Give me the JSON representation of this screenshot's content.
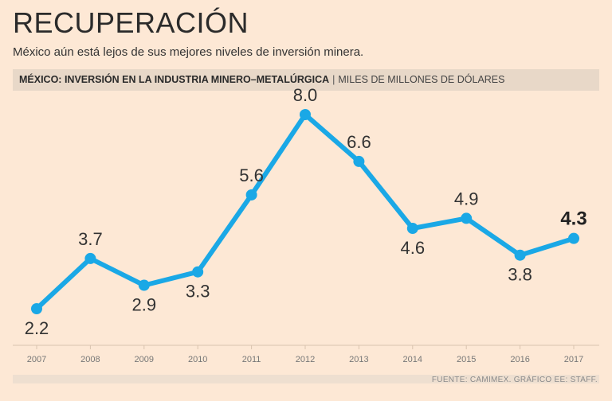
{
  "header": {
    "title": "RECUPERACIÓN",
    "subtitle": "México aún está lejos de sus mejores niveles de inversión minera.",
    "band_main": "MÉXICO: INVERSIÓN EN LA INDUSTRIA MINERO–METALÚRGICA",
    "band_separator": "|",
    "band_unit": "MILES DE MILLONES DE DÓLARES"
  },
  "footer": {
    "source": "FUENTE: CAMIMEX. GRÁFICO EE: STAFF."
  },
  "colors": {
    "line": "#1aa8e6",
    "background": "#fde8d5",
    "band": "#e8d8c8"
  },
  "chart_data": {
    "type": "line",
    "title": "MÉXICO: INVERSIÓN EN LA INDUSTRIA MINERO–METALÚRGICA",
    "ylabel": "MILES DE MILLONES DE DÓLARES",
    "xlabel": "",
    "categories": [
      "2007",
      "2008",
      "2009",
      "2010",
      "2011",
      "2012",
      "2013",
      "2014",
      "2015",
      "2016",
      "2017"
    ],
    "values": [
      2.2,
      3.7,
      2.9,
      3.3,
      5.6,
      8.0,
      6.6,
      4.6,
      4.9,
      3.8,
      4.3
    ],
    "labels": [
      "2.2",
      "3.7",
      "2.9",
      "3.3",
      "5.6",
      "8.0",
      "6.6",
      "4.6",
      "4.9",
      "3.8",
      "4.3"
    ],
    "label_position": [
      "below",
      "above",
      "below",
      "below",
      "above",
      "above",
      "above",
      "below",
      "above",
      "below",
      "above"
    ],
    "highlight_index": 10,
    "ylim": [
      2.2,
      8.0
    ]
  }
}
